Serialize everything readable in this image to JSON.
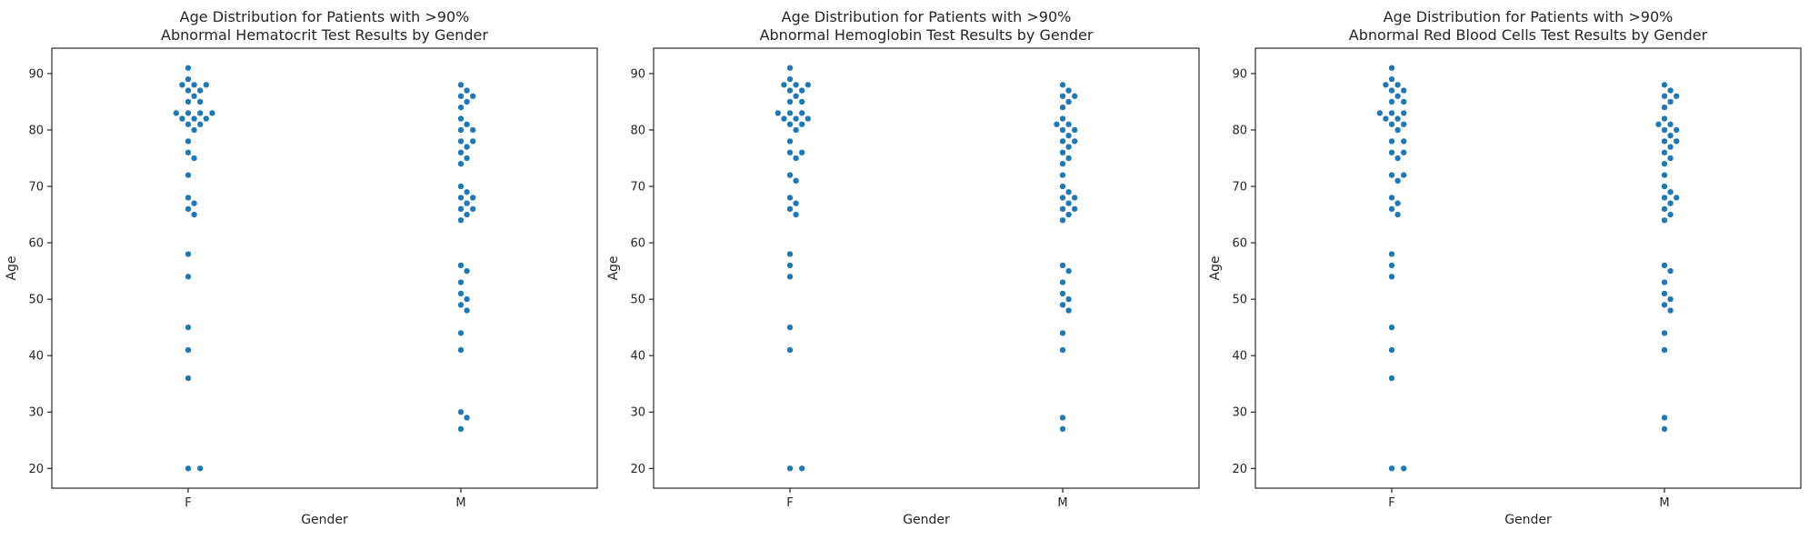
{
  "chart_data": [
    {
      "type": "scatter",
      "title_line1": "Age Distribution for Patients with >90%",
      "title_line2": "Abnormal Hematocrit Test Results by Gender",
      "xlabel": "Gender",
      "ylabel": "Age",
      "categories": [
        "F",
        "M"
      ],
      "ylim": [
        16.5,
        94.5
      ],
      "yticks": [
        20,
        30,
        40,
        50,
        60,
        70,
        80,
        90
      ],
      "series": [
        {
          "category": "F",
          "values": [
            91,
            89,
            88,
            88,
            88,
            87,
            87,
            86,
            85,
            85,
            83,
            83,
            83,
            83,
            82,
            82,
            82,
            81,
            81,
            80,
            78,
            76,
            75,
            72,
            68,
            67,
            66,
            65,
            58,
            54,
            45,
            41,
            36,
            20,
            20
          ]
        },
        {
          "category": "M",
          "values": [
            88,
            87,
            86,
            86,
            85,
            84,
            82,
            81,
            80,
            80,
            78,
            78,
            77,
            76,
            75,
            74,
            70,
            69,
            68,
            68,
            67,
            66,
            66,
            65,
            64,
            56,
            55,
            53,
            51,
            50,
            49,
            48,
            44,
            41,
            30,
            29,
            27
          ]
        }
      ]
    },
    {
      "type": "scatter",
      "title_line1": "Age Distribution for Patients with >90%",
      "title_line2": "Abnormal Hemoglobin Test Results by Gender",
      "xlabel": "Gender",
      "ylabel": "Age",
      "categories": [
        "F",
        "M"
      ],
      "ylim": [
        16.5,
        94.5
      ],
      "yticks": [
        20,
        30,
        40,
        50,
        60,
        70,
        80,
        90
      ],
      "series": [
        {
          "category": "F",
          "values": [
            91,
            89,
            88,
            88,
            88,
            87,
            87,
            86,
            85,
            85,
            83,
            83,
            83,
            82,
            82,
            82,
            81,
            81,
            80,
            78,
            76,
            76,
            75,
            72,
            71,
            68,
            67,
            66,
            65,
            58,
            56,
            54,
            45,
            41,
            20,
            20
          ]
        },
        {
          "category": "M",
          "values": [
            88,
            87,
            86,
            86,
            85,
            84,
            82,
            81,
            81,
            80,
            80,
            79,
            78,
            78,
            77,
            76,
            75,
            74,
            72,
            70,
            69,
            68,
            68,
            67,
            66,
            66,
            65,
            64,
            56,
            55,
            53,
            51,
            50,
            49,
            48,
            44,
            41,
            29,
            27
          ]
        }
      ]
    },
    {
      "type": "scatter",
      "title_line1": "Age Distribution for Patients with >90%",
      "title_line2": "Abnormal Red Blood Cells Test Results by Gender",
      "xlabel": "Gender",
      "ylabel": "Age",
      "categories": [
        "F",
        "M"
      ],
      "ylim": [
        16.5,
        94.5
      ],
      "yticks": [
        20,
        30,
        40,
        50,
        60,
        70,
        80,
        90
      ],
      "series": [
        {
          "category": "F",
          "values": [
            91,
            89,
            88,
            88,
            87,
            87,
            86,
            85,
            85,
            83,
            83,
            83,
            82,
            82,
            81,
            81,
            80,
            78,
            78,
            76,
            76,
            75,
            72,
            72,
            71,
            68,
            67,
            66,
            65,
            58,
            56,
            54,
            45,
            41,
            36,
            20,
            20
          ]
        },
        {
          "category": "M",
          "values": [
            88,
            87,
            86,
            86,
            85,
            84,
            82,
            81,
            81,
            80,
            80,
            79,
            78,
            78,
            77,
            76,
            75,
            74,
            72,
            70,
            69,
            68,
            68,
            67,
            66,
            65,
            64,
            56,
            55,
            53,
            51,
            50,
            49,
            48,
            44,
            41,
            29,
            27
          ]
        }
      ]
    }
  ],
  "colors": {
    "point": "#1f77b4",
    "point_edge": "#ffffff",
    "axis": "#000000",
    "text": "#262626"
  }
}
